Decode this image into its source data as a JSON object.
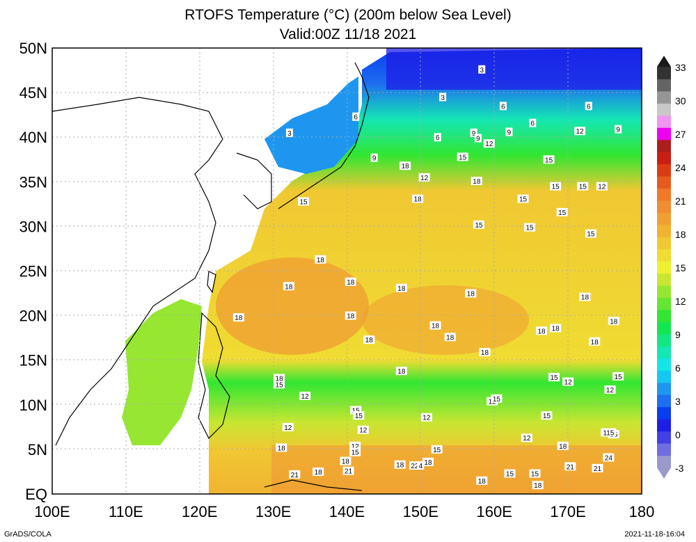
{
  "title": {
    "line1": "RTOFS Temperature (°C) (200m below Sea Level)",
    "line2": "Valid:00Z 11/18 2021"
  },
  "axes": {
    "lat_labels": [
      "EQ",
      "5N",
      "10N",
      "15N",
      "20N",
      "25N",
      "30N",
      "35N",
      "40N",
      "45N",
      "50N"
    ],
    "lon_labels": [
      "100E",
      "110E",
      "120E",
      "130E",
      "140E",
      "150E",
      "160E",
      "170E",
      "180"
    ],
    "lat_range": [
      0,
      50
    ],
    "lon_range": [
      100,
      180
    ],
    "grid": "dotted"
  },
  "colorbar": {
    "labels": [
      "-3",
      "0",
      "3",
      "6",
      "9",
      "12",
      "15",
      "18",
      "21",
      "24",
      "27",
      "30",
      "33"
    ],
    "colors": [
      "#9999cc",
      "#6e6ee0",
      "#4040e6",
      "#1e1ee6",
      "#0a3cf0",
      "#1e6ef0",
      "#1e96f0",
      "#14c8f0",
      "#14e6e6",
      "#14e6b4",
      "#14e682",
      "#14e650",
      "#32e632",
      "#64e632",
      "#96e632",
      "#c8e632",
      "#f0f032",
      "#f0dc32",
      "#f0c832",
      "#f0b432",
      "#f0a032",
      "#f08c32",
      "#f07828",
      "#e65a1e",
      "#dc3c14",
      "#c81e14",
      "#aa1e1e",
      "#f000f0",
      "#f096f0",
      "#c8c8c8",
      "#969696",
      "#646464",
      "#323232"
    ]
  },
  "contour_labels": [
    {
      "text": "3",
      "lon": 153,
      "lat": 44.5
    },
    {
      "text": "3",
      "lon": 158.3,
      "lat": 47.6
    },
    {
      "text": "3",
      "lon": 132.2,
      "lat": 40.5
    },
    {
      "text": "6",
      "lon": 141.2,
      "lat": 42.3
    },
    {
      "text": "6",
      "lon": 152.3,
      "lat": 40
    },
    {
      "text": "6",
      "lon": 161.2,
      "lat": 43.5
    },
    {
      "text": "6",
      "lon": 165.2,
      "lat": 41.6
    },
    {
      "text": "6",
      "lon": 172.8,
      "lat": 43.5
    },
    {
      "text": "9",
      "lon": 157.2,
      "lat": 40.5
    },
    {
      "text": "9",
      "lon": 162,
      "lat": 40.6
    },
    {
      "text": "9",
      "lon": 176.8,
      "lat": 40.9
    },
    {
      "text": "9",
      "lon": 157.8,
      "lat": 39.9
    },
    {
      "text": "9",
      "lon": 143.7,
      "lat": 37.7
    },
    {
      "text": "12",
      "lon": 159.3,
      "lat": 39.3
    },
    {
      "text": "12",
      "lon": 171.6,
      "lat": 40.7
    },
    {
      "text": "12",
      "lon": 174.6,
      "lat": 34.5
    },
    {
      "text": "12",
      "lon": 150.5,
      "lat": 35.5
    },
    {
      "text": "12",
      "lon": 170,
      "lat": 12.6
    },
    {
      "text": "12",
      "lon": 175.7,
      "lat": 11.7
    },
    {
      "text": "12",
      "lon": 134.3,
      "lat": 11.0
    },
    {
      "text": "12",
      "lon": 159.7,
      "lat": 10.4
    },
    {
      "text": "12",
      "lon": 150.8,
      "lat": 8.6
    },
    {
      "text": "12",
      "lon": 132.0,
      "lat": 7.5
    },
    {
      "text": "12",
      "lon": 142.2,
      "lat": 7.2
    },
    {
      "text": "12",
      "lon": 164.4,
      "lat": 6.3
    },
    {
      "text": "12",
      "lon": 141.1,
      "lat": 5.4
    },
    {
      "text": "15",
      "lon": 155.7,
      "lat": 37.8
    },
    {
      "text": "15",
      "lon": 167.4,
      "lat": 37.5
    },
    {
      "text": "15",
      "lon": 168.3,
      "lat": 34.5
    },
    {
      "text": "15",
      "lon": 172.0,
      "lat": 34.5
    },
    {
      "text": "15",
      "lon": 163.9,
      "lat": 33.1
    },
    {
      "text": "15",
      "lon": 169.2,
      "lat": 31.6
    },
    {
      "text": "15",
      "lon": 157.9,
      "lat": 30.2
    },
    {
      "text": "15",
      "lon": 164.8,
      "lat": 29.9
    },
    {
      "text": "15",
      "lon": 173.1,
      "lat": 29.2
    },
    {
      "text": "15",
      "lon": 134.1,
      "lat": 32.8
    },
    {
      "text": "15",
      "lon": 168.1,
      "lat": 13.1
    },
    {
      "text": "15",
      "lon": 176.8,
      "lat": 13.2
    },
    {
      "text": "15",
      "lon": 130.8,
      "lat": 12.3
    },
    {
      "text": "15",
      "lon": 160.3,
      "lat": 10.7
    },
    {
      "text": "15",
      "lon": 141.2,
      "lat": 9.4
    },
    {
      "text": "15",
      "lon": 141.6,
      "lat": 8.8
    },
    {
      "text": "15",
      "lon": 167.1,
      "lat": 8.8
    },
    {
      "text": "15",
      "lon": 152.2,
      "lat": 5.0
    },
    {
      "text": "15",
      "lon": 141.1,
      "lat": 4.7
    },
    {
      "text": "15",
      "lon": 162.1,
      "lat": 2.3
    },
    {
      "text": "15",
      "lon": 165.5,
      "lat": 2.3
    },
    {
      "text": "15",
      "lon": 176.2,
      "lat": 6.7
    },
    {
      "text": "18",
      "lon": 147.9,
      "lat": 36.8
    },
    {
      "text": "18",
      "lon": 157.6,
      "lat": 35.1
    },
    {
      "text": "18",
      "lon": 149.6,
      "lat": 33.1
    },
    {
      "text": "18",
      "lon": 136.4,
      "lat": 26.3
    },
    {
      "text": "18",
      "lon": 140.5,
      "lat": 23.8
    },
    {
      "text": "18",
      "lon": 132.1,
      "lat": 23.3
    },
    {
      "text": "18",
      "lon": 147.4,
      "lat": 23.1
    },
    {
      "text": "18",
      "lon": 156.8,
      "lat": 22.5
    },
    {
      "text": "18",
      "lon": 172.3,
      "lat": 22.1
    },
    {
      "text": "18",
      "lon": 125.3,
      "lat": 19.8
    },
    {
      "text": "18",
      "lon": 140.5,
      "lat": 20.0
    },
    {
      "text": "18",
      "lon": 152.0,
      "lat": 18.9
    },
    {
      "text": "18",
      "lon": 176.2,
      "lat": 19.4
    },
    {
      "text": "18",
      "lon": 166.4,
      "lat": 18.3
    },
    {
      "text": "18",
      "lon": 168.3,
      "lat": 18.6
    },
    {
      "text": "18",
      "lon": 154.0,
      "lat": 17.6
    },
    {
      "text": "18",
      "lon": 143.0,
      "lat": 17.3
    },
    {
      "text": "18",
      "lon": 173.6,
      "lat": 17.1
    },
    {
      "text": "18",
      "lon": 158.7,
      "lat": 15.9
    },
    {
      "text": "18",
      "lon": 147.4,
      "lat": 13.8
    },
    {
      "text": "18",
      "lon": 130.8,
      "lat": 13.0
    },
    {
      "text": "18",
      "lon": 131.1,
      "lat": 5.2
    },
    {
      "text": "18",
      "lon": 169.3,
      "lat": 5.4
    },
    {
      "text": "18",
      "lon": 139.8,
      "lat": 3.7
    },
    {
      "text": "18",
      "lon": 147.2,
      "lat": 3.3
    },
    {
      "text": "18",
      "lon": 151.0,
      "lat": 3.6
    },
    {
      "text": "18",
      "lon": 136.1,
      "lat": 2.5
    },
    {
      "text": "18",
      "lon": 158.3,
      "lat": 1.5
    },
    {
      "text": "18",
      "lon": 165.9,
      "lat": 1.0
    },
    {
      "text": "21",
      "lon": 132.9,
      "lat": 2.2
    },
    {
      "text": "21",
      "lon": 140.2,
      "lat": 2.6
    },
    {
      "text": "21",
      "lon": 170.3,
      "lat": 3.1
    },
    {
      "text": "21",
      "lon": 174.0,
      "lat": 2.9
    },
    {
      "text": "22",
      "lon": 149.2,
      "lat": 3.2
    },
    {
      "text": "4",
      "lon": 150.0,
      "lat": 3.2
    },
    {
      "text": "24",
      "lon": 175.5,
      "lat": 4.1
    },
    {
      "text": "115",
      "lon": 175.5,
      "lat": 6.9
    }
  ],
  "credits": {
    "left": "GrADS/COLA",
    "right": "2021-11-18-16:04"
  }
}
